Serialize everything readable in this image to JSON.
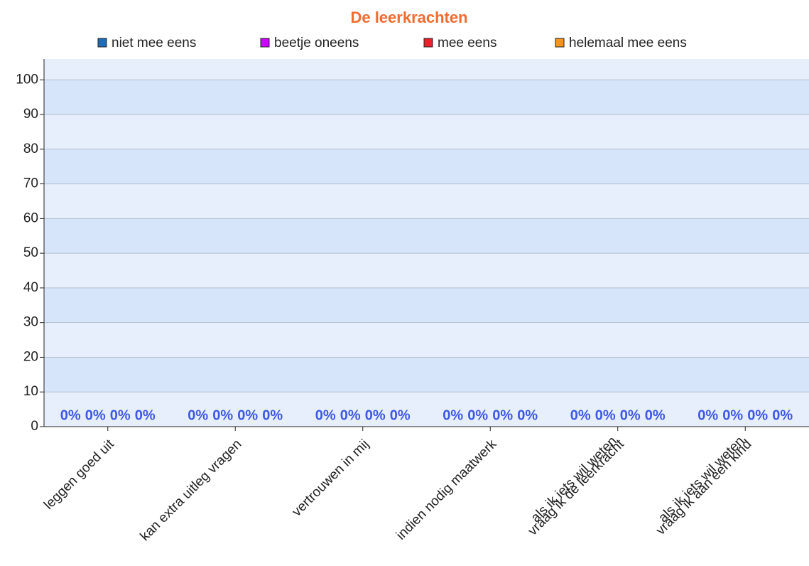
{
  "chart_data": {
    "type": "bar",
    "title": "De leerkrachten",
    "categories": [
      [
        "leggen goed uit"
      ],
      [
        "kan extra uitleg vragen"
      ],
      [
        "vertrouwen in mij"
      ],
      [
        "indien nodig maatwerk"
      ],
      [
        "als ik iets wil weten",
        "vraag ik de leerkracht"
      ],
      [
        "als ik iets wil weten",
        "vraag ik aan een kind"
      ]
    ],
    "series": [
      {
        "name": "niet mee eens",
        "color": "#1f6bb5",
        "values": [
          0,
          0,
          0,
          0,
          0,
          0
        ],
        "value_labels": [
          "0%",
          "0%",
          "0%",
          "0%",
          "0%",
          "0%"
        ]
      },
      {
        "name": "beetje oneens",
        "color": "#cc00ff",
        "values": [
          0,
          0,
          0,
          0,
          0,
          0
        ],
        "value_labels": [
          "0%",
          "0%",
          "0%",
          "0%",
          "0%",
          "0%"
        ]
      },
      {
        "name": "mee eens",
        "color": "#e8202a",
        "values": [
          0,
          0,
          0,
          0,
          0,
          0
        ],
        "value_labels": [
          "0%",
          "0%",
          "0%",
          "0%",
          "0%",
          "0%"
        ]
      },
      {
        "name": "helemaal mee eens",
        "color": "#f7931e",
        "values": [
          0,
          0,
          0,
          0,
          0,
          0
        ],
        "value_labels": [
          "0%",
          "0%",
          "0%",
          "0%",
          "0%",
          "0%"
        ]
      }
    ],
    "ylim": [
      0,
      106
    ],
    "yticks": [
      0,
      10,
      20,
      30,
      40,
      50,
      60,
      70,
      80,
      90,
      100
    ],
    "grid": true,
    "legend": "top"
  }
}
